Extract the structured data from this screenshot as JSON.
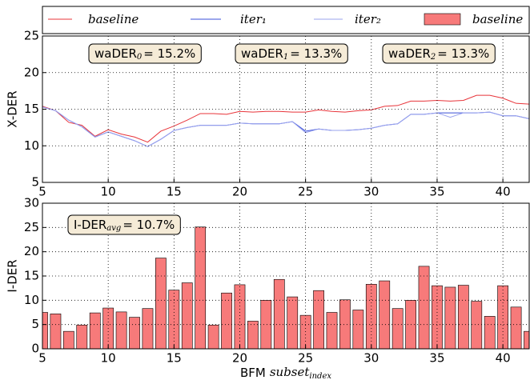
{
  "chart_data": [
    {
      "type": "line",
      "y_label": "X-DER",
      "x": [
        5,
        6,
        7,
        8,
        9,
        10,
        11,
        12,
        13,
        14,
        15,
        16,
        17,
        18,
        19,
        20,
        21,
        22,
        23,
        24,
        25,
        26,
        27,
        28,
        29,
        30,
        31,
        32,
        33,
        34,
        35,
        36,
        37,
        38,
        39,
        40,
        41,
        42
      ],
      "xlim": [
        5,
        42
      ],
      "xticks": [
        5,
        10,
        15,
        20,
        25,
        30,
        35,
        40
      ],
      "ylim": [
        5,
        25
      ],
      "yticks": [
        5,
        10,
        15,
        20,
        25
      ],
      "grid": true,
      "series": [
        {
          "name": "baseline",
          "color": "#e8343a",
          "values": [
            15.4,
            14.8,
            13.2,
            12.8,
            11.3,
            12.2,
            11.6,
            11.2,
            10.5,
            12.0,
            12.7,
            13.5,
            14.4,
            14.4,
            14.3,
            14.7,
            14.6,
            14.7,
            14.7,
            14.6,
            14.6,
            14.9,
            14.7,
            14.6,
            14.8,
            14.9,
            15.4,
            15.5,
            16.1,
            16.1,
            16.2,
            16.1,
            16.2,
            16.9,
            16.9,
            16.5,
            15.8,
            15.7
          ]
        },
        {
          "name": "iter₁",
          "color": "#3a4fd8",
          "values": [
            15.3,
            14.8,
            13.5,
            12.6,
            11.2,
            11.9,
            11.3,
            10.7,
            9.9,
            10.9,
            12.1,
            12.5,
            12.8,
            12.8,
            12.8,
            13.1,
            13.0,
            13.0,
            13.0,
            13.3,
            12.0,
            12.3,
            12.1,
            12.1,
            12.2,
            12.4,
            12.8,
            13.0,
            14.3,
            14.3,
            14.5,
            14.5,
            14.5,
            14.5,
            14.6,
            14.1,
            14.1,
            13.7
          ]
        },
        {
          "name": "iter₂",
          "color": "#9aa3ee",
          "values": [
            15.3,
            14.8,
            13.5,
            12.6,
            11.2,
            11.9,
            11.3,
            10.7,
            9.9,
            10.9,
            12.1,
            12.5,
            12.8,
            12.8,
            12.8,
            13.1,
            13.0,
            13.0,
            13.0,
            13.3,
            11.8,
            12.3,
            12.1,
            12.1,
            12.2,
            12.4,
            12.8,
            13.0,
            14.3,
            14.3,
            14.5,
            13.9,
            14.5,
            14.5,
            14.6,
            14.1,
            14.1,
            13.7
          ]
        }
      ],
      "annotations": [
        {
          "label": "waDER",
          "sub": "0",
          "text": "= 15.2%"
        },
        {
          "label": "waDER",
          "sub": "1",
          "text": "= 13.3%"
        },
        {
          "label": "waDER",
          "sub": "2",
          "text": "= 13.3%"
        }
      ]
    },
    {
      "type": "bar",
      "y_label": "I-DER",
      "x_label": {
        "text": "BFM",
        "italic": "subset",
        "sub": "index"
      },
      "x": [
        5,
        6,
        7,
        8,
        9,
        10,
        11,
        12,
        13,
        14,
        15,
        16,
        17,
        18,
        19,
        20,
        21,
        22,
        23,
        24,
        25,
        26,
        27,
        28,
        29,
        30,
        31,
        32,
        33,
        34,
        35,
        36,
        37,
        38,
        39,
        40,
        41,
        42
      ],
      "xlim": [
        5,
        42
      ],
      "xticks": [
        5,
        10,
        15,
        20,
        25,
        30,
        35,
        40
      ],
      "ylim": [
        0,
        30
      ],
      "yticks": [
        0,
        5,
        10,
        15,
        20,
        25,
        30
      ],
      "grid": true,
      "series": [
        {
          "name": "baseline",
          "color": "#f77a7a",
          "values": [
            7.5,
            7.2,
            3.6,
            4.9,
            7.4,
            8.4,
            7.6,
            6.5,
            8.3,
            18.7,
            12.1,
            13.6,
            25.1,
            4.9,
            11.5,
            13.2,
            5.7,
            10.0,
            14.3,
            10.7,
            6.9,
            12.0,
            7.5,
            10.1,
            8.0,
            13.3,
            14.0,
            8.3,
            10.0,
            17.0,
            13.0,
            12.7,
            13.1,
            9.8,
            6.7,
            13.0,
            8.6,
            3.6
          ]
        }
      ],
      "annotations": [
        {
          "label": "I-DER",
          "sub": "avg",
          "text": "= 10.7%"
        }
      ]
    }
  ]
}
